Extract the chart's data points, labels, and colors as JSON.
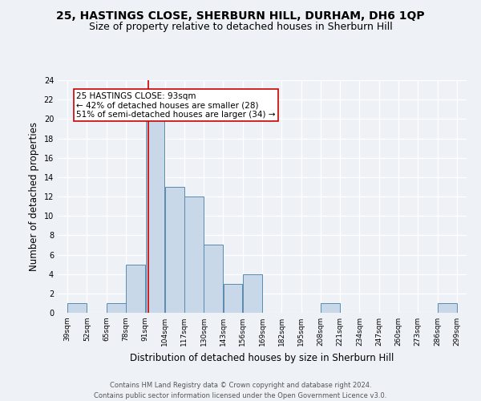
{
  "title1": "25, HASTINGS CLOSE, SHERBURN HILL, DURHAM, DH6 1QP",
  "title2": "Size of property relative to detached houses in Sherburn Hill",
  "xlabel": "Distribution of detached houses by size in Sherburn Hill",
  "ylabel": "Number of detached properties",
  "bins": [
    39,
    52,
    65,
    78,
    91,
    104,
    117,
    130,
    143,
    156,
    169,
    182,
    195,
    208,
    221,
    234,
    247,
    260,
    273,
    286,
    299
  ],
  "counts": [
    1,
    0,
    1,
    5,
    20,
    13,
    12,
    7,
    3,
    4,
    0,
    0,
    0,
    1,
    0,
    0,
    0,
    0,
    0,
    1
  ],
  "bar_color": "#c8d8e8",
  "bar_edge_color": "#5a8ab0",
  "property_line_x": 93,
  "property_line_color": "#cc0000",
  "annotation_text": "25 HASTINGS CLOSE: 93sqm\n← 42% of detached houses are smaller (28)\n51% of semi-detached houses are larger (34) →",
  "annotation_box_color": "#ffffff",
  "annotation_box_edge": "#cc0000",
  "ylim": [
    0,
    24
  ],
  "yticks": [
    0,
    2,
    4,
    6,
    8,
    10,
    12,
    14,
    16,
    18,
    20,
    22,
    24
  ],
  "tick_labels": [
    "39sqm",
    "52sqm",
    "65sqm",
    "78sqm",
    "91sqm",
    "104sqm",
    "117sqm",
    "130sqm",
    "143sqm",
    "156sqm",
    "169sqm",
    "182sqm",
    "195sqm",
    "208sqm",
    "221sqm",
    "234sqm",
    "247sqm",
    "260sqm",
    "273sqm",
    "286sqm",
    "299sqm"
  ],
  "footer1": "Contains HM Land Registry data © Crown copyright and database right 2024.",
  "footer2": "Contains public sector information licensed under the Open Government Licence v3.0.",
  "background_color": "#eef2f6",
  "grid_color": "#ffffff",
  "title_fontsize": 10,
  "subtitle_fontsize": 9,
  "axis_label_fontsize": 8.5,
  "tick_fontsize": 6.5,
  "annotation_fontsize": 7.5,
  "footer_fontsize": 6.0
}
